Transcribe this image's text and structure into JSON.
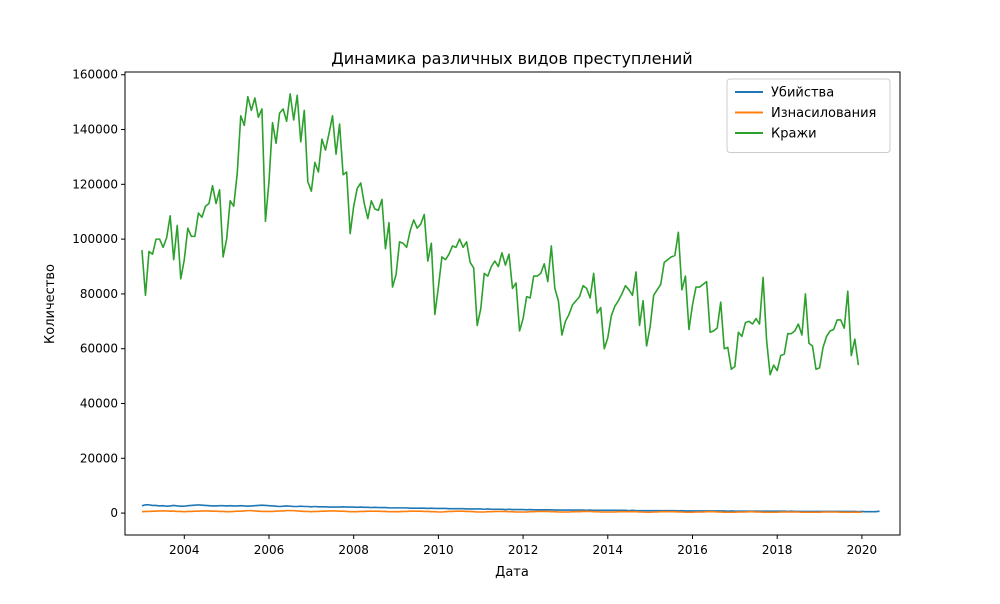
{
  "chart_data": {
    "type": "line",
    "title": "Динамика различных видов преступлений",
    "xlabel": "Дата",
    "ylabel": "Количество",
    "xlim": [
      2002.6,
      2020.9
    ],
    "ylim": [
      -8000,
      161000
    ],
    "x_ticks": [
      2004,
      2006,
      2008,
      2010,
      2012,
      2014,
      2016,
      2018,
      2020
    ],
    "y_ticks": [
      0,
      20000,
      40000,
      60000,
      80000,
      100000,
      120000,
      140000,
      160000
    ],
    "grid": false,
    "legend_position": "top-right",
    "x_start_year": 2003,
    "x_step_months": 1,
    "series": [
      {
        "name": "Убийства",
        "color": "#1f77b4",
        "values": [
          2700,
          3000,
          3000,
          2800,
          2800,
          2600,
          2700,
          2500,
          2600,
          2800,
          2600,
          2500,
          2500,
          2700,
          2800,
          2900,
          3000,
          2900,
          2800,
          2700,
          2600,
          2600,
          2700,
          2700,
          2600,
          2700,
          2600,
          2600,
          2700,
          2600,
          2500,
          2600,
          2700,
          2800,
          2900,
          2800,
          2700,
          2600,
          2500,
          2400,
          2500,
          2600,
          2500,
          2400,
          2400,
          2500,
          2400,
          2400,
          2300,
          2400,
          2300,
          2300,
          2300,
          2200,
          2200,
          2200,
          2200,
          2300,
          2200,
          2200,
          2200,
          2100,
          2200,
          2100,
          2100,
          2000,
          2100,
          2000,
          2000,
          2000,
          1900,
          1900,
          1900,
          1900,
          1900,
          1900,
          1800,
          1800,
          1800,
          1800,
          1800,
          1700,
          1800,
          1700,
          1700,
          1700,
          1700,
          1600,
          1600,
          1600,
          1600,
          1600,
          1500,
          1500,
          1500,
          1500,
          1500,
          1400,
          1500,
          1400,
          1400,
          1400,
          1400,
          1300,
          1400,
          1300,
          1300,
          1300,
          1300,
          1200,
          1300,
          1200,
          1200,
          1200,
          1200,
          1200,
          1200,
          1100,
          1100,
          1100,
          1100,
          1100,
          1100,
          1100,
          1100,
          1100,
          1000,
          1100,
          1000,
          1000,
          1000,
          1000,
          1000,
          1000,
          1000,
          1000,
          1000,
          1000,
          900,
          1000,
          900,
          900,
          900,
          900,
          900,
          900,
          900,
          900,
          900,
          900,
          900,
          900,
          800,
          900,
          800,
          800,
          800,
          800,
          800,
          800,
          800,
          800,
          800,
          800,
          800,
          800,
          700,
          800,
          700,
          700,
          700,
          700,
          700,
          700,
          700,
          700,
          700,
          700,
          700,
          700,
          700,
          700,
          700,
          600,
          700,
          600,
          600,
          600,
          600,
          600,
          600,
          600,
          600,
          600,
          600,
          600,
          600,
          600,
          600,
          600,
          600,
          600,
          600,
          500,
          600,
          500,
          500,
          500,
          500,
          700
        ]
      },
      {
        "name": "Изнасилования",
        "color": "#ff7f0e",
        "values": [
          500,
          600,
          600,
          700,
          700,
          800,
          800,
          800,
          700,
          700,
          600,
          600,
          500,
          600,
          600,
          700,
          700,
          800,
          800,
          800,
          700,
          700,
          600,
          600,
          500,
          500,
          600,
          700,
          700,
          800,
          900,
          900,
          800,
          700,
          600,
          600,
          600,
          600,
          700,
          800,
          800,
          900,
          900,
          900,
          800,
          700,
          600,
          600,
          500,
          600,
          600,
          700,
          700,
          800,
          800,
          800,
          700,
          700,
          600,
          500,
          500,
          500,
          600,
          600,
          700,
          700,
          700,
          700,
          600,
          600,
          500,
          500,
          500,
          500,
          600,
          600,
          700,
          700,
          700,
          700,
          600,
          600,
          500,
          500,
          400,
          400,
          500,
          600,
          600,
          700,
          700,
          700,
          600,
          600,
          500,
          400,
          400,
          400,
          500,
          500,
          600,
          600,
          600,
          600,
          500,
          500,
          400,
          400,
          400,
          400,
          500,
          500,
          600,
          600,
          600,
          600,
          500,
          500,
          400,
          400,
          400,
          400,
          500,
          500,
          500,
          600,
          600,
          600,
          500,
          500,
          400,
          400,
          400,
          400,
          400,
          500,
          500,
          500,
          500,
          500,
          500,
          400,
          400,
          300,
          300,
          400,
          400,
          500,
          500,
          500,
          500,
          500,
          400,
          400,
          300,
          300,
          300,
          400,
          400,
          400,
          500,
          500,
          500,
          400,
          400,
          300,
          300,
          300,
          300,
          400,
          400,
          400,
          500,
          500,
          400,
          400,
          300,
          300,
          300,
          300,
          300,
          400,
          400,
          400,
          400,
          400,
          400,
          300,
          300,
          300,
          300,
          300,
          300,
          400,
          400,
          400,
          400,
          400,
          300,
          300,
          300,
          300,
          300,
          300,
          300
        ]
      },
      {
        "name": "Кражи",
        "color": "#2ca02c",
        "values": [
          96000,
          79500,
          95500,
          94500,
          100000,
          100000,
          97000,
          100500,
          108500,
          92500,
          105000,
          85500,
          92500,
          104000,
          101000,
          101000,
          109500,
          108000,
          112000,
          113000,
          119500,
          113000,
          118000,
          93500,
          100000,
          114000,
          112000,
          124000,
          145000,
          141500,
          152000,
          147000,
          151500,
          144500,
          147500,
          106500,
          121000,
          142500,
          135000,
          146000,
          147500,
          143000,
          153000,
          143500,
          152500,
          135500,
          147000,
          121000,
          117500,
          128000,
          124500,
          136500,
          132500,
          138500,
          145000,
          131000,
          142000,
          123500,
          124500,
          102000,
          112000,
          118500,
          120500,
          113000,
          107500,
          114000,
          111000,
          110500,
          114500,
          96500,
          106000,
          82500,
          87000,
          99000,
          98500,
          97000,
          103000,
          107000,
          104000,
          105500,
          109000,
          92000,
          98500,
          72500,
          82500,
          93500,
          92500,
          94500,
          97500,
          97000,
          100000,
          97000,
          99000,
          91500,
          89500,
          68500,
          74500,
          87500,
          86500,
          90000,
          92000,
          90000,
          95000,
          90500,
          94500,
          82000,
          84000,
          66500,
          71000,
          79000,
          78500,
          86500,
          86500,
          87500,
          91000,
          84500,
          97500,
          82000,
          77500,
          65000,
          70000,
          72500,
          76000,
          77500,
          79000,
          83000,
          82000,
          78500,
          87500,
          73000,
          75000,
          60000,
          64000,
          72000,
          75500,
          77500,
          80000,
          83000,
          81500,
          79500,
          88000,
          68500,
          77500,
          61000,
          68000,
          79500,
          81500,
          83500,
          91500,
          92500,
          93500,
          94000,
          102500,
          81500,
          86500,
          67000,
          76000,
          82500,
          82500,
          83500,
          84500,
          66000,
          66500,
          67500,
          77000,
          60000,
          60500,
          52500,
          53500,
          66000,
          64500,
          69500,
          70000,
          69000,
          71000,
          69000,
          86000,
          63000,
          50500,
          54000,
          52000,
          57500,
          58000,
          65500,
          65500,
          66500,
          69000,
          65000,
          80000,
          62000,
          61000,
          52500,
          53000,
          60500,
          64500,
          66500,
          67000,
          70500,
          70500,
          67500,
          81000,
          57500,
          63500,
          54000
        ]
      }
    ]
  }
}
